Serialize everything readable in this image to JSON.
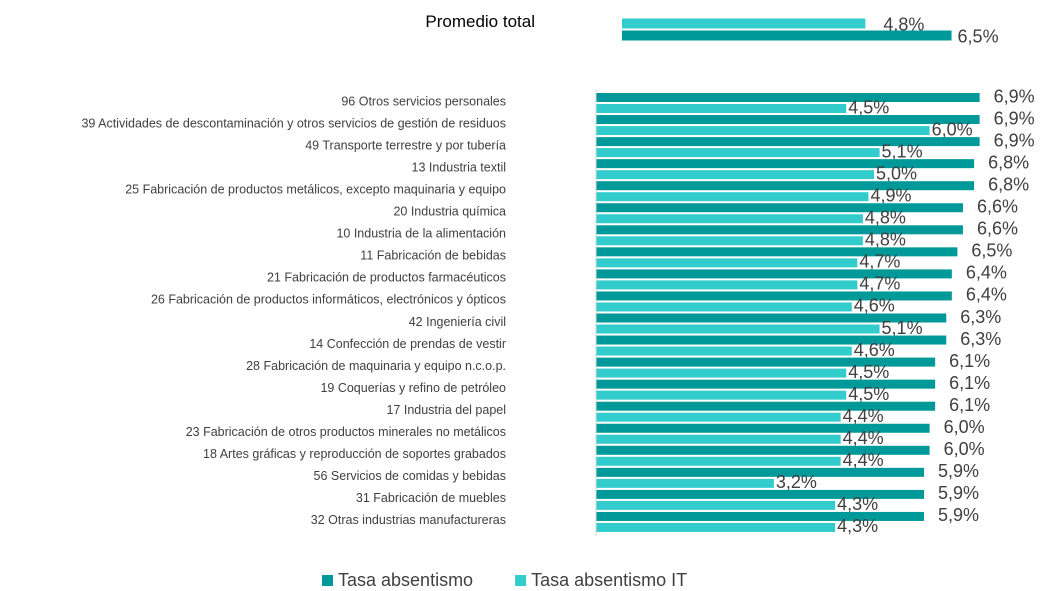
{
  "chart_data": [
    {
      "type": "bar",
      "orientation": "horizontal",
      "categories": [
        "Promedio total"
      ],
      "series": [
        {
          "color": "#33cccc",
          "values": [
            4.8
          ],
          "value_labels": [
            "4,8%"
          ]
        },
        {
          "color": "#009999",
          "values": [
            6.5
          ],
          "value_labels": [
            "6,5%"
          ]
        }
      ]
    },
    {
      "type": "bar",
      "orientation": "horizontal",
      "categories": [
        "96 Otros servicios personales",
        "39 Actividades de descontaminación y otros servicios de gestión de residuos",
        "49 Transporte terrestre y por tubería",
        "13 Industria textil",
        "25 Fabricación de productos metálicos, excepto maquinaria y equipo",
        "20 Industria química",
        "10 Industria de la alimentación",
        "11 Fabricación de bebidas",
        "21 Fabricación de productos farmacéuticos",
        "26 Fabricación de productos informáticos, electrónicos y ópticos",
        "42 Ingeniería civil",
        "14 Confección de prendas de vestir",
        "28 Fabricación de maquinaria y equipo n.c.o.p.",
        "19 Coquerías y refino de petróleo",
        "17 Industria del papel",
        "23 Fabricación de otros productos minerales no metálicos",
        "18 Artes gráficas y reproducción de soportes grabados",
        "56 Servicios de comidas y bebidas",
        "31 Fabricación de muebles",
        "32 Otras industrias manufactureras"
      ],
      "series": [
        {
          "name": "Tasa absentismo",
          "color": "#009999",
          "values": [
            6.9,
            6.9,
            6.9,
            6.8,
            6.8,
            6.6,
            6.6,
            6.5,
            6.4,
            6.4,
            6.3,
            6.3,
            6.1,
            6.1,
            6.1,
            6.0,
            6.0,
            5.9,
            5.9,
            5.9
          ],
          "value_labels": [
            "6,9%",
            "6,9%",
            "6,9%",
            "6,8%",
            "6,8%",
            "6,6%",
            "6,6%",
            "6,5%",
            "6,4%",
            "6,4%",
            "6,3%",
            "6,3%",
            "6,1%",
            "6,1%",
            "6,1%",
            "6,0%",
            "6,0%",
            "5,9%",
            "5,9%",
            "5,9%"
          ]
        },
        {
          "name": "Tasa absentismo IT",
          "color": "#33cccc",
          "values": [
            4.5,
            6.0,
            5.1,
            5.0,
            4.9,
            4.8,
            4.8,
            4.7,
            4.7,
            4.6,
            5.1,
            4.6,
            4.5,
            4.5,
            4.4,
            4.4,
            4.4,
            3.2,
            4.3,
            4.3
          ],
          "value_labels": [
            "4,5%",
            "6,0%",
            "5,1%",
            "5,0%",
            "4,9%",
            "4,8%",
            "4,8%",
            "4,7%",
            "4,7%",
            "4,6%",
            "5,1%",
            "4,6%",
            "4,5%",
            "4,5%",
            "4,4%",
            "4,4%",
            "4,4%",
            "3,2%",
            "4,3%",
            "4,3%"
          ]
        }
      ],
      "legend": "bottom"
    }
  ]
}
